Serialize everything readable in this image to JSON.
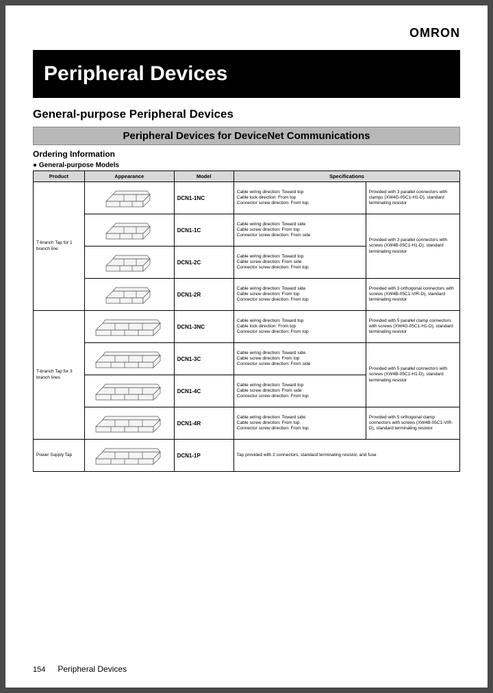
{
  "brand": "OMRON",
  "title": "Peripheral Devices",
  "section_heading": "General-purpose Peripheral Devices",
  "sub_banner": "Peripheral Devices for DeviceNet Communications",
  "ordering_label": "Ordering Information",
  "models_label": "General-purpose Models",
  "table": {
    "headers": [
      "Product",
      "Appearance",
      "Model",
      "Specifications"
    ],
    "groups": [
      {
        "product": "T-branch Tap for 1 branch line",
        "rows": [
          {
            "model": "DCN1-1NC",
            "spec1": "Cable wiring direction: Toward top\nCable lock direction: From top\nConnector screw direction: From top",
            "spec2": "Provided with 3 parallel connectors with clamps (XW4G-05C1-H1-D), standard terminating resistor",
            "spec2_rowspan": 1
          },
          {
            "model": "DCN1-1C",
            "spec1": "Cable wiring direction: Toward side\nCable screw direction: From top\nConnector screw direction: From side",
            "spec2": "Provided with 3 parallel connectors with screws (XW4B-05C1-H1-D), standard terminating resistor",
            "spec2_rowspan": 2
          },
          {
            "model": "DCN1-2C",
            "spec1": "Cable wiring direction: Toward top\nCable screw direction: From side\nConnector screw direction: From top"
          },
          {
            "model": "DCN1-2R",
            "spec1": "Cable wiring direction: Toward side\nCable screw direction: From top\nConnector screw direction: From top",
            "spec2": "Provided with 3 orthogonal connectors with screws (XW4B-05C1-VIR-D), standard terminating resistor",
            "spec2_rowspan": 1
          }
        ]
      },
      {
        "product": "T-branch Tap for 3 branch lines",
        "rows": [
          {
            "model": "DCN1-3NC",
            "spec1": "Cable wiring direction: Toward top\nCable lock direction: From top\nConnector screw direction: From top",
            "spec2": "Provided with 5 parallel clamp connectors with screws (XW4G-05C1-H1-D), standard terminating resistor",
            "spec2_rowspan": 1
          },
          {
            "model": "DCN1-3C",
            "spec1": "Cable wiring direction: Toward side\nCable screw direction: From top\nConnector screw direction: From side",
            "spec2": "Provided with 5 parallel connectors with screws (XW4B-05C1-H1-D), standard terminating resistor",
            "spec2_rowspan": 2
          },
          {
            "model": "DCN1-4C",
            "spec1": "Cable wiring direction: Toward top\nCable screw direction: From side\nConnector screw direction: From top"
          },
          {
            "model": "DCN1-4R",
            "spec1": "Cable wiring direction: Toward side\nCable screw direction: From top\nConnector screw direction: From top",
            "spec2": "Provided with 5 orthogonal clamp connectors with screws (XW4B-05C1-VIR-D), standard terminating resistor",
            "spec2_rowspan": 1
          }
        ]
      },
      {
        "product": "Power Supply Tap",
        "rows": [
          {
            "model": "DCN1-1P",
            "spec1": "Tap provided with 2 connectors, standard terminating resistor, and fuse",
            "spec1_colspan": 2
          }
        ]
      }
    ]
  },
  "footer": {
    "page_num": "154",
    "title": "Peripheral Devices"
  },
  "colors": {
    "page_bg": "#ffffff",
    "outer_bg": "#4a4a4a",
    "title_bg": "#000000",
    "title_fg": "#ffffff",
    "banner_bg": "#b8b8b8",
    "th_bg": "#d8d8d8",
    "border": "#000000"
  }
}
